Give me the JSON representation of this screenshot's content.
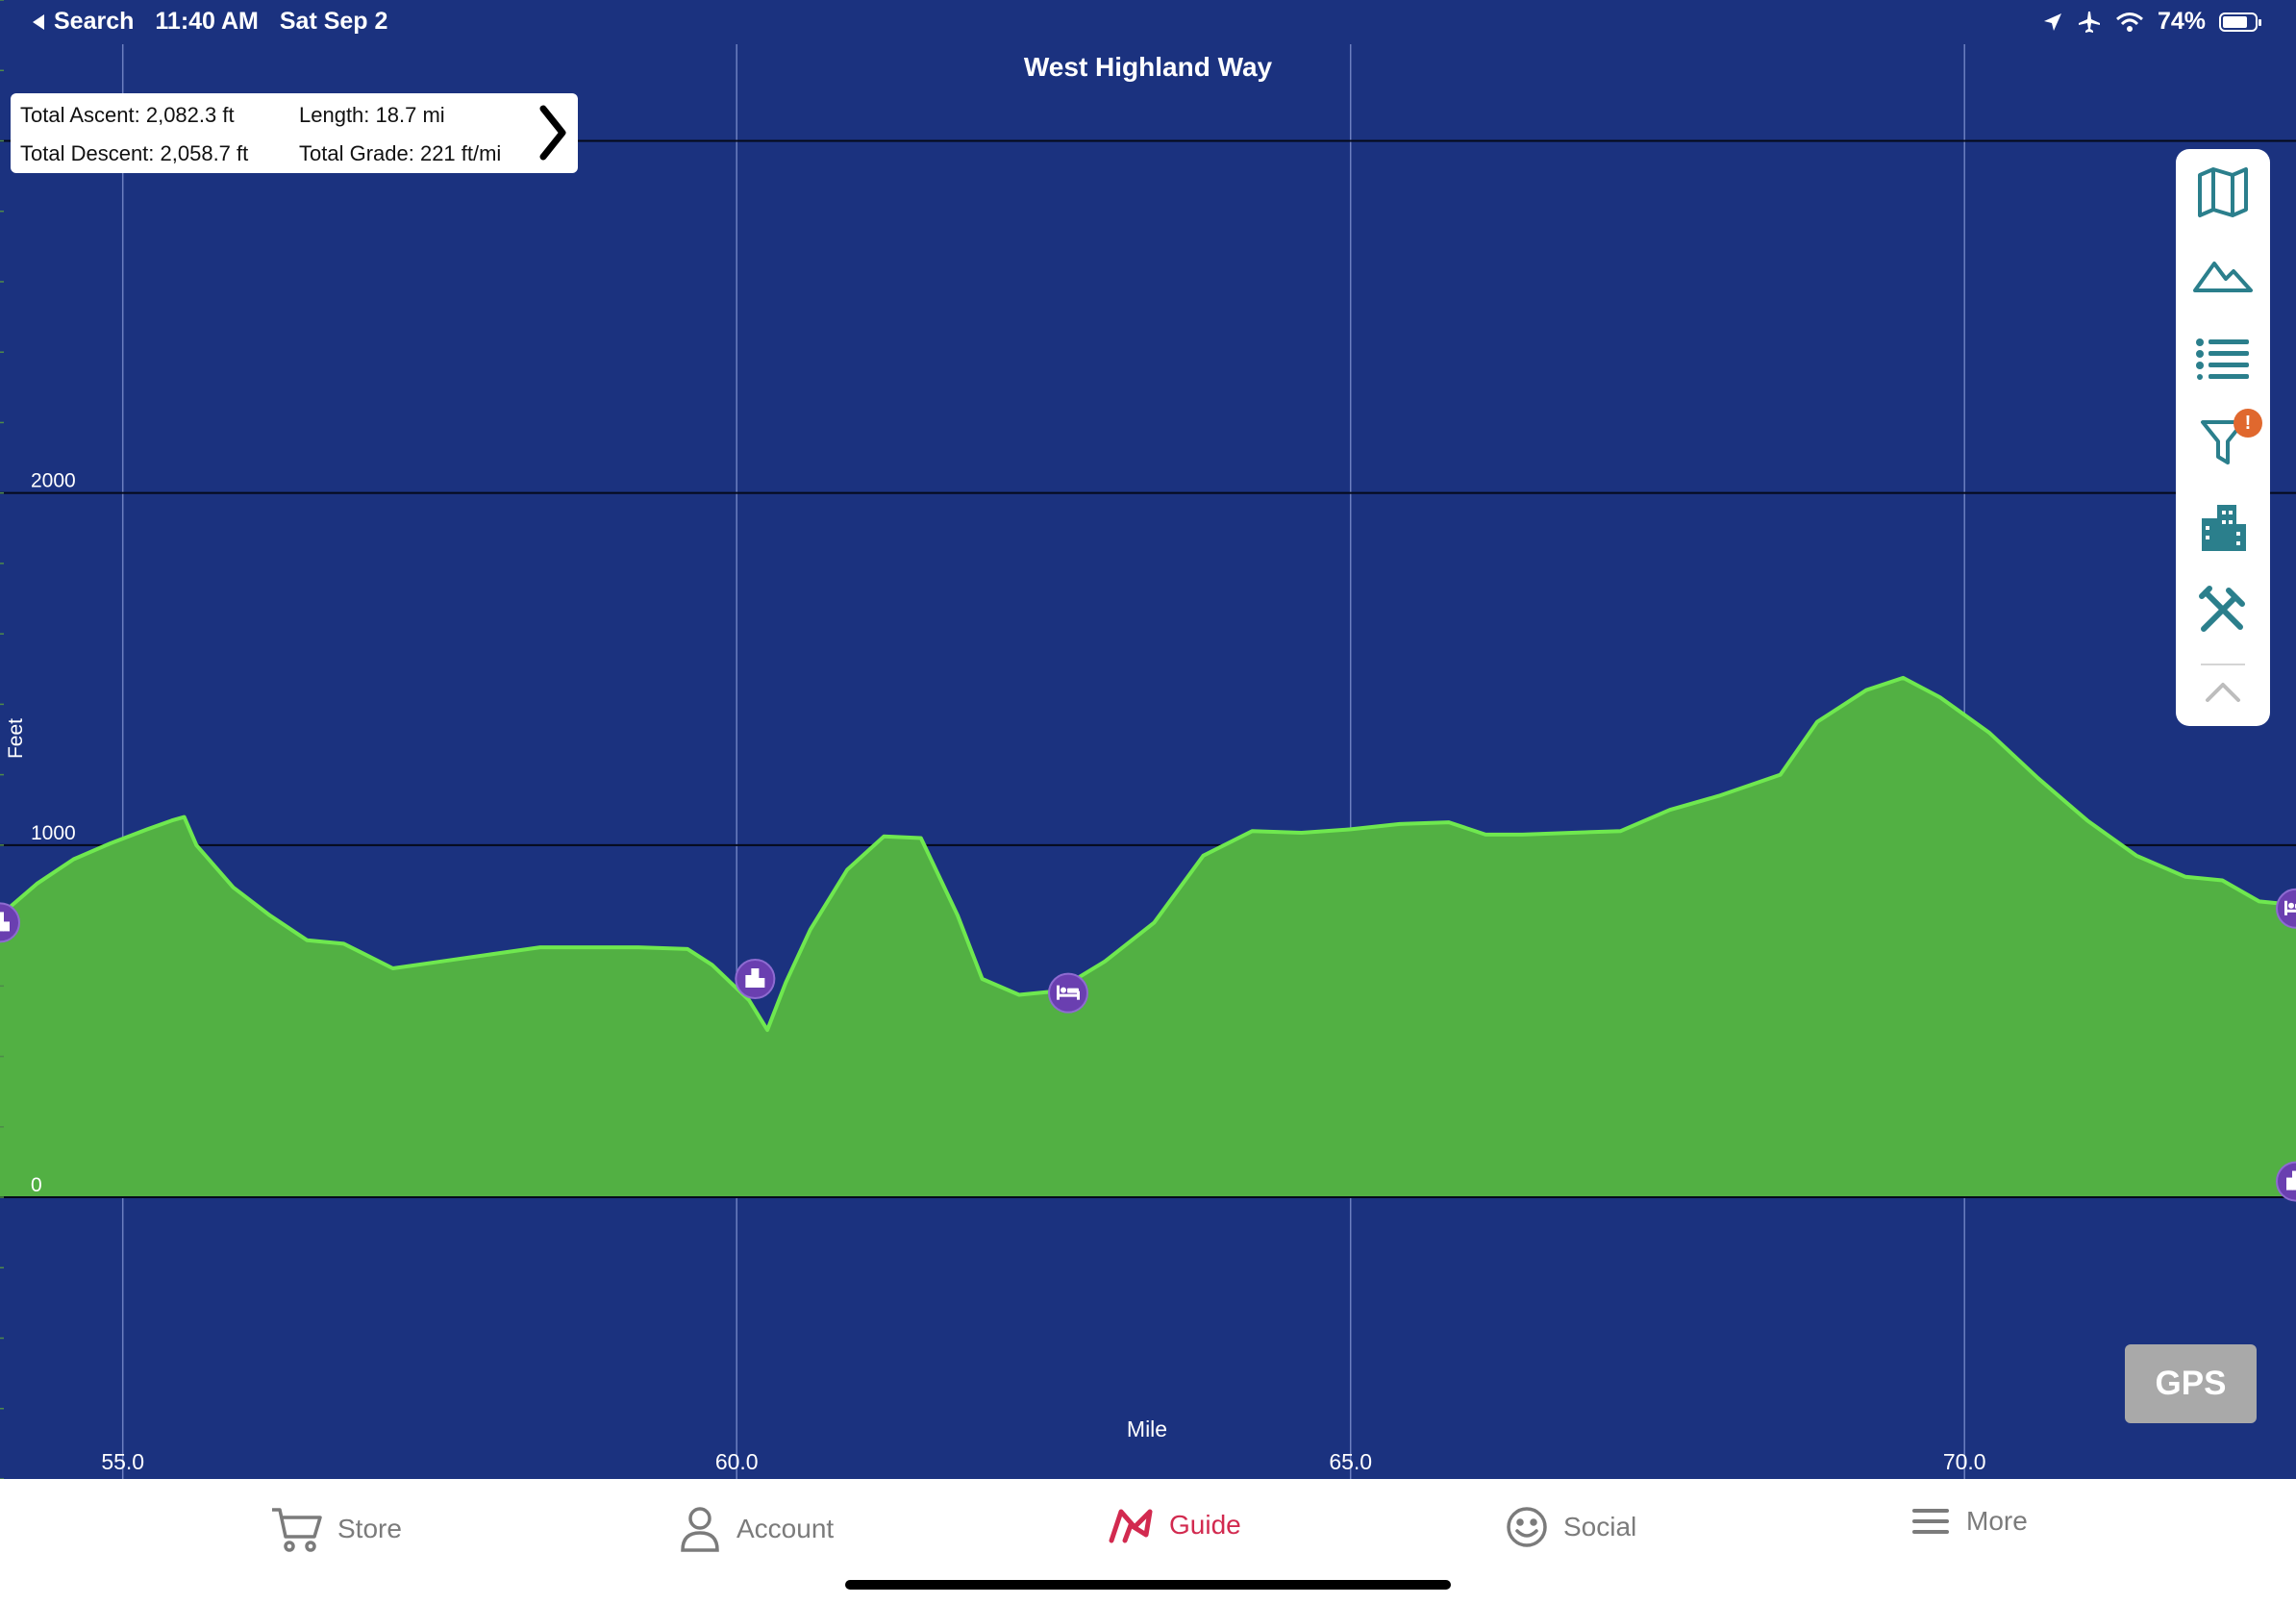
{
  "status_bar": {
    "back_label": "Search",
    "time": "11:40 AM",
    "date": "Sat Sep 2",
    "battery": "74%"
  },
  "title": "West Highland Way",
  "stats": {
    "total_ascent": "Total Ascent: 2,082.3 ft",
    "length": "Length: 18.7 mi",
    "total_descent": "Total Descent: 2,058.7 ft",
    "total_grade": "Total Grade: 221 ft/mi"
  },
  "toolbar_icons": [
    "map-icon",
    "mountain-icon",
    "list-icon",
    "filter-icon",
    "buildings-icon",
    "tools-icon",
    "chevron-up-icon"
  ],
  "filter_badge": "!",
  "gps_label": "GPS",
  "tabs": [
    {
      "label": "Store",
      "icon": "cart-icon"
    },
    {
      "label": "Account",
      "icon": "person-icon"
    },
    {
      "label": "Guide",
      "icon": "guide-icon"
    },
    {
      "label": "Social",
      "icon": "smiley-icon"
    },
    {
      "label": "More",
      "icon": "menu-icon"
    }
  ],
  "colors": {
    "background": "#1b327f",
    "area_fill": "#52b043",
    "line": "#6fe84f",
    "marker": "#6a3fb0",
    "accent": "#d22a4f",
    "toolbar_icon": "#2b7f8c"
  },
  "chart_data": {
    "type": "area",
    "title": "West Highland Way",
    "xlabel": "Mile",
    "ylabel": "Feet",
    "xlim": [
      54.0,
      72.7
    ],
    "ylim": [
      -800,
      3400
    ],
    "x_ticks": [
      55.0,
      60.0,
      65.0,
      70.0
    ],
    "x_tick_labels": [
      "55.0",
      "60.0",
      "65.0",
      "70.0"
    ],
    "y_ticks": [
      0,
      1000,
      2000,
      3000
    ],
    "y_tick_labels": [
      "0",
      "1000",
      "2000",
      ""
    ],
    "grid": true,
    "x": [
      54.0,
      54.3,
      54.6,
      54.9,
      55.2,
      55.4,
      55.5,
      55.6,
      55.9,
      56.2,
      56.5,
      56.8,
      57.2,
      57.6,
      58.0,
      58.4,
      58.8,
      59.2,
      59.6,
      59.8,
      60.1,
      60.25,
      60.4,
      60.6,
      60.9,
      61.2,
      61.5,
      61.8,
      62.0,
      62.3,
      62.6,
      63.0,
      63.4,
      63.8,
      64.2,
      64.6,
      65.0,
      65.4,
      65.8,
      66.1,
      66.4,
      66.8,
      67.2,
      67.6,
      68.0,
      68.5,
      68.8,
      69.2,
      69.5,
      69.8,
      70.2,
      70.6,
      71.0,
      71.4,
      71.8,
      72.1,
      72.4,
      72.7
    ],
    "y": [
      800,
      890,
      960,
      1005,
      1045,
      1070,
      1080,
      1000,
      880,
      800,
      730,
      720,
      650,
      670,
      690,
      710,
      710,
      710,
      705,
      660,
      560,
      475,
      610,
      760,
      930,
      1025,
      1020,
      800,
      620,
      575,
      585,
      670,
      780,
      970,
      1040,
      1035,
      1045,
      1060,
      1065,
      1030,
      1030,
      1035,
      1040,
      1100,
      1140,
      1200,
      1350,
      1440,
      1475,
      1420,
      1320,
      1190,
      1070,
      970,
      910,
      900,
      840,
      830
    ],
    "markers": [
      {
        "x": 54.0,
        "y": 780,
        "type": "buildings"
      },
      {
        "x": 60.15,
        "y": 620,
        "type": "buildings"
      },
      {
        "x": 62.7,
        "y": 580,
        "type": "bed"
      },
      {
        "x": 72.7,
        "y": 820,
        "type": "bed"
      },
      {
        "x": 72.7,
        "y": 45,
        "type": "buildings"
      }
    ]
  }
}
